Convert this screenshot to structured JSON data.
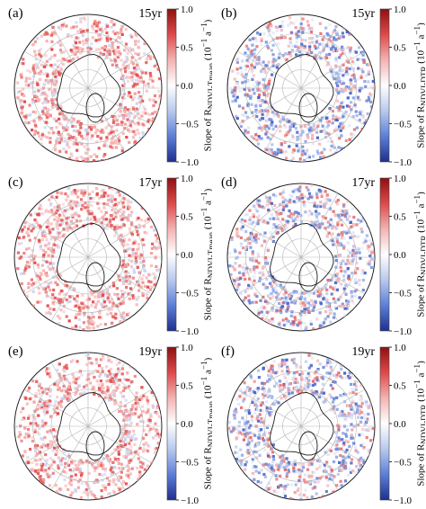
{
  "colorbar": {
    "colors": [
      "#1f2f8f",
      "#5c7ed6",
      "#b9c9ee",
      "#ffffff",
      "#f3b3b3",
      "#dd4a4a",
      "#8e1010"
    ],
    "ticks": [
      "1.0",
      "0.5",
      "0.0",
      "−0.5",
      "−1.0"
    ],
    "tick_values": [
      1.0,
      0.5,
      0.0,
      -0.5,
      -1.0
    ]
  },
  "panels": [
    {
      "label": "(a)",
      "period": "15yr",
      "colorbar_title": "Slope of R<sub>NDVI-Tmean</sub> (10<sup>−1</sup> a<sup>−1</sup>)",
      "variable": "NDVI-Tmean",
      "colors": [
        "#e85a5a",
        "#f29a9a",
        "#f7c4c4",
        "#c9d3f1",
        "#e44a4a",
        "#f5b0b0"
      ]
    },
    {
      "label": "(b)",
      "period": "15yr",
      "colorbar_title": "Slope of R<sub>NDVI-DTR</sub> (10<sup>−1</sup> a<sup>−1</sup>)",
      "variable": "NDVI-DTR",
      "colors": [
        "#6f8ee0",
        "#e86a6a",
        "#aabde9",
        "#f4b5b5",
        "#4a66c9",
        "#dfe6f7"
      ]
    },
    {
      "label": "(c)",
      "period": "17yr",
      "colorbar_title": "Slope of R<sub>NDVI-Tmean</sub> (10<sup>−1</sup> a<sup>−1</sup>)",
      "variable": "NDVI-Tmean",
      "colors": [
        "#e85a5a",
        "#f29a9a",
        "#f7c4c4",
        "#c9d3f1",
        "#e44a4a",
        "#f5b0b0"
      ]
    },
    {
      "label": "(d)",
      "period": "17yr",
      "colorbar_title": "Slope of R<sub>NDVI-DTR</sub> (10<sup>−1</sup> a<sup>−1</sup>)",
      "variable": "NDVI-DTR",
      "colors": [
        "#6f8ee0",
        "#e86a6a",
        "#aabde9",
        "#f4b5b5",
        "#4a66c9",
        "#dfe6f7"
      ]
    },
    {
      "label": "(e)",
      "period": "19yr",
      "colorbar_title": "Slope of R<sub>NDVI-Tmean</sub> (10<sup>−1</sup> a<sup>−1</sup>)",
      "variable": "NDVI-Tmean",
      "colors": [
        "#e85a5a",
        "#f29a9a",
        "#f7c4c4",
        "#c9d3f1",
        "#e44a4a",
        "#f5b0b0"
      ]
    },
    {
      "label": "(f)",
      "period": "19yr",
      "colorbar_title": "Slope of R<sub>NDVI-DTR</sub> (10<sup>−1</sup> a<sup>−1</sup>)",
      "variable": "NDVI-DTR",
      "colors": [
        "#6f8ee0",
        "#e86a6a",
        "#aabde9",
        "#f4b5b5",
        "#4a66c9",
        "#dfe6f7"
      ]
    }
  ],
  "map": {
    "projection": "north-polar-stereographic",
    "grid_color": "#b5b5b5",
    "coast_color": "#1a1a1a"
  }
}
